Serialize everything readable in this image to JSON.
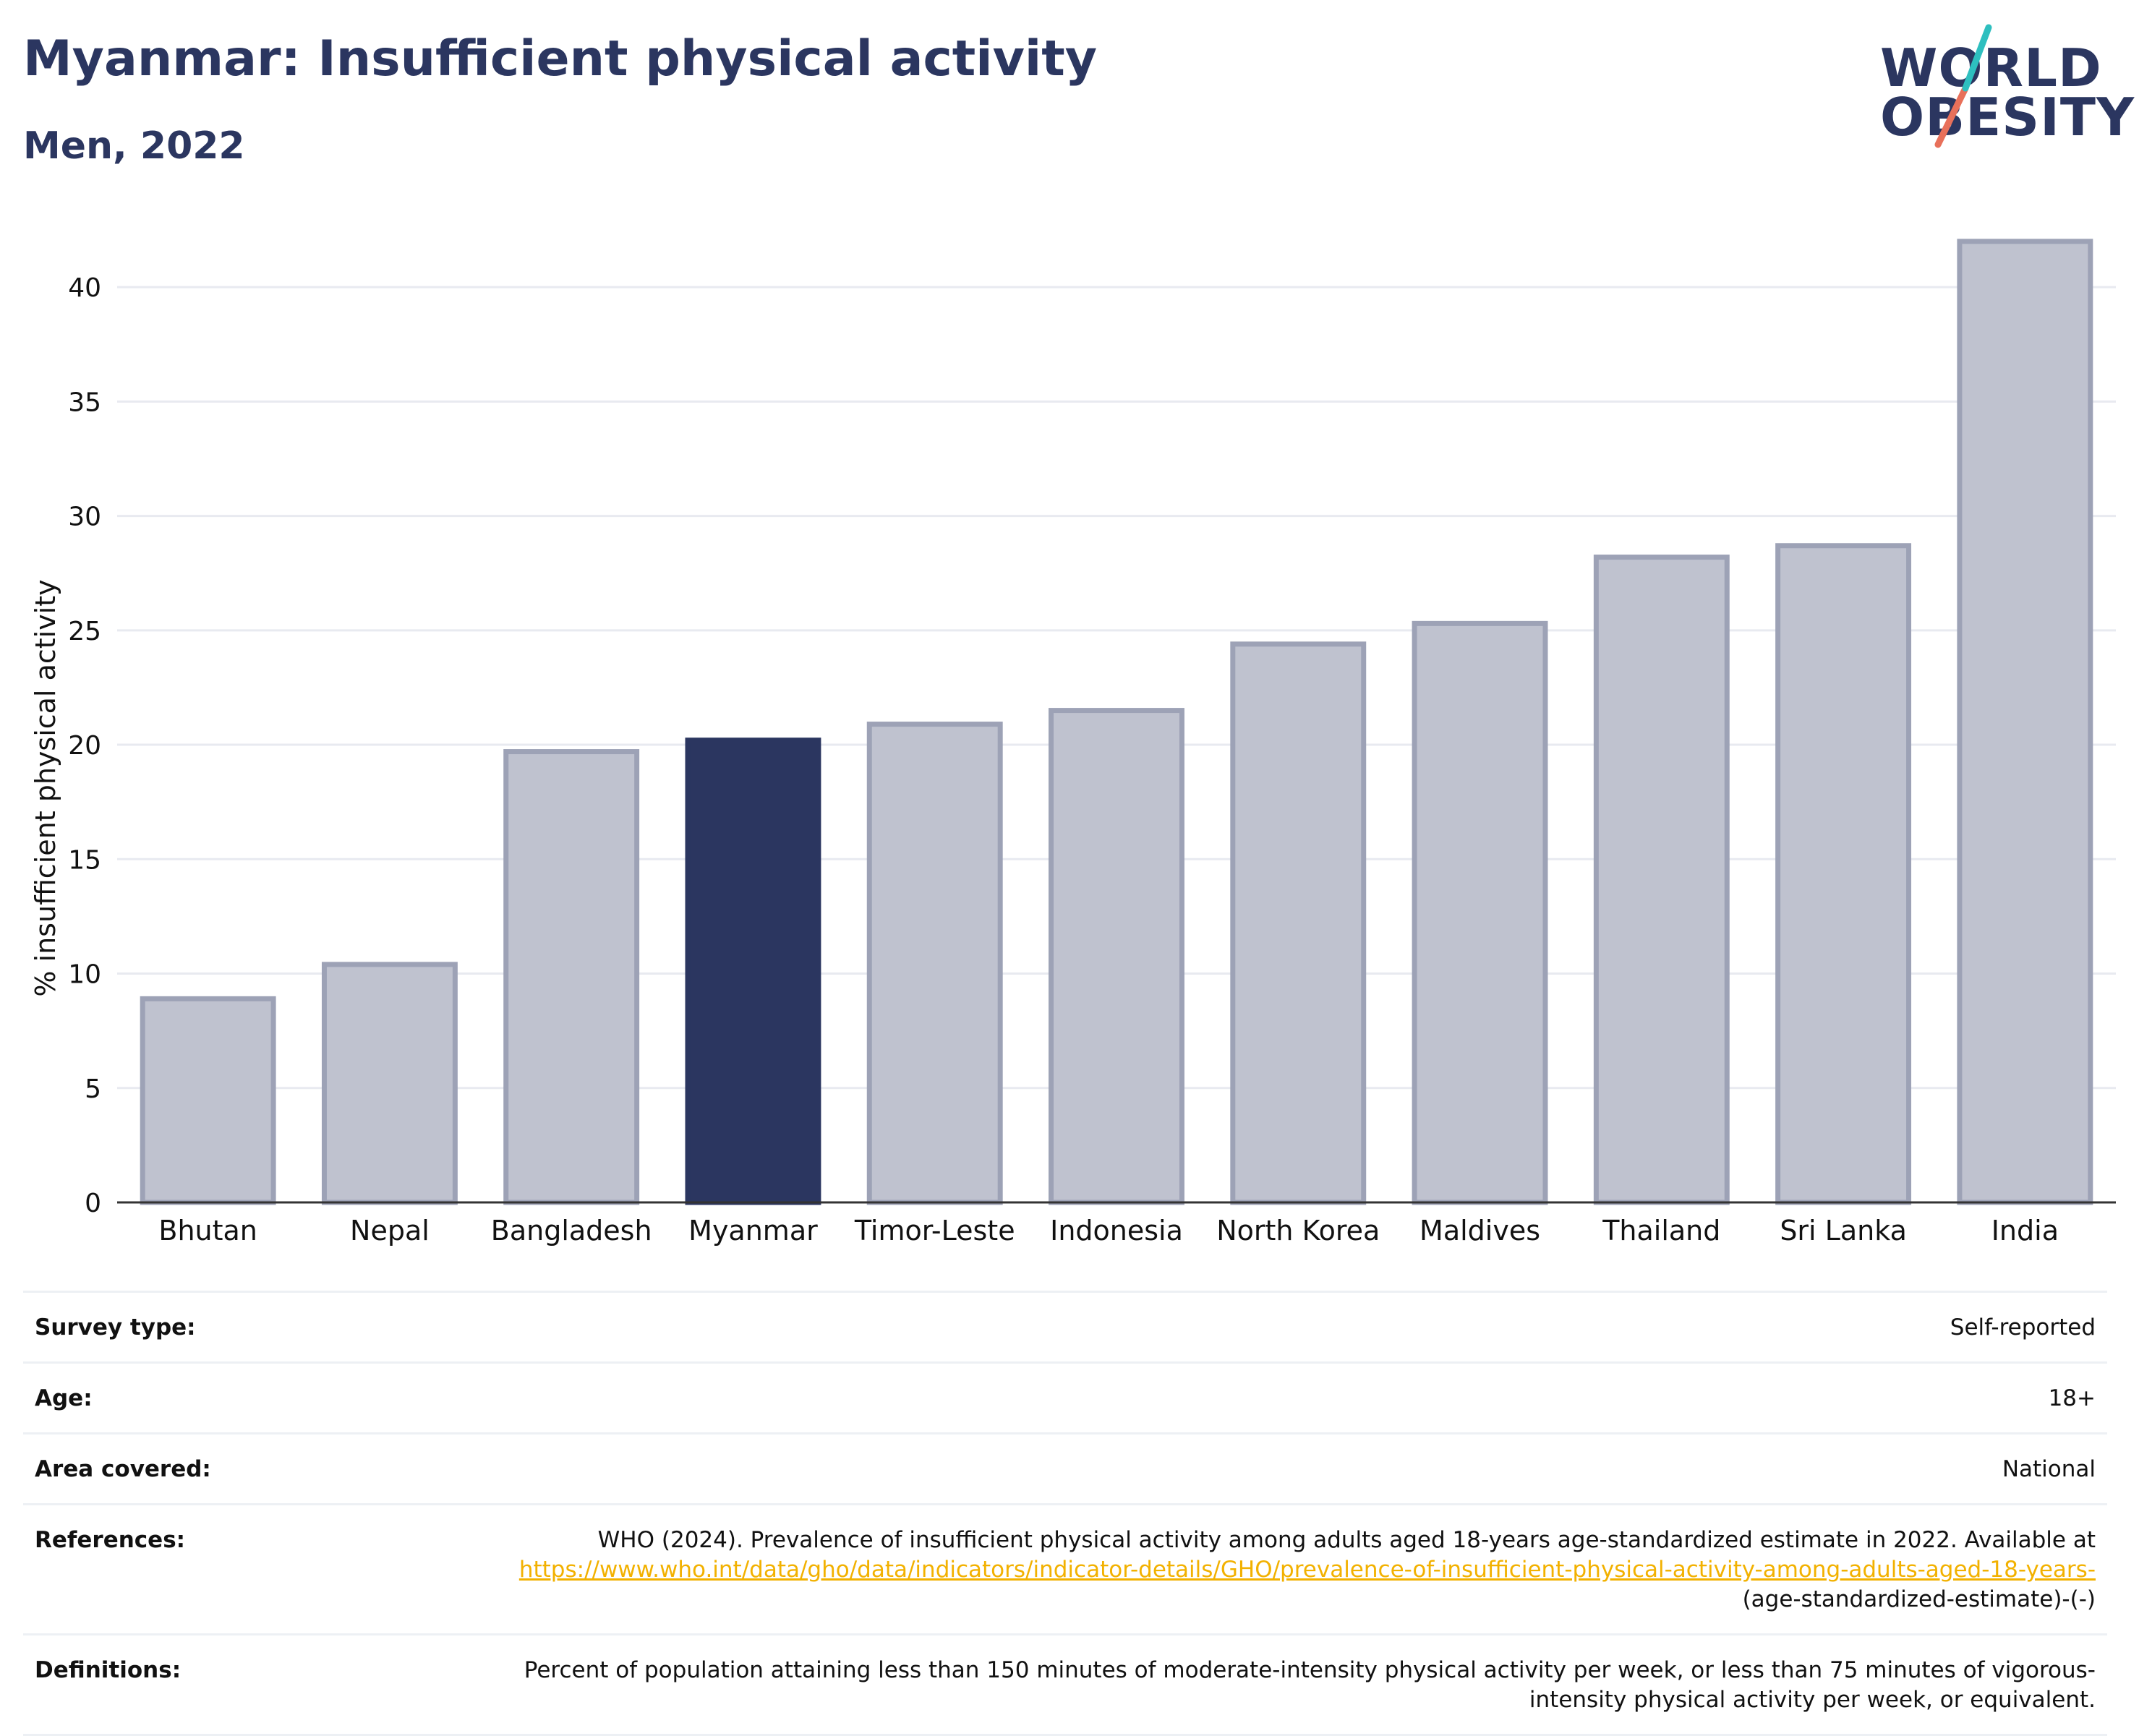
{
  "title": "Myanmar: Insufficient physical activity",
  "subtitle": "Men, 2022",
  "logo": {
    "line1": "WORLD",
    "line2": "OBESITY"
  },
  "colors": {
    "title": "#2b3660",
    "highlight_bar": "#2b3660",
    "other_bar": "#bfc2cf",
    "other_bar_border": "#9da2b6",
    "link": "#f2b100",
    "logo_teal": "#2ebfbf",
    "logo_coral": "#e8705a",
    "gridline": "#e8eaf0"
  },
  "chart_data": {
    "type": "bar",
    "title": "",
    "ylabel": "% insufficient physical activity",
    "xlabel": "",
    "ylim": [
      0,
      42.5
    ],
    "yticks": [
      0,
      5,
      10,
      15,
      20,
      25,
      30,
      35,
      40
    ],
    "grid": true,
    "categories": [
      "Bhutan",
      "Nepal",
      "Bangladesh",
      "Myanmar",
      "Timor-Leste",
      "Indonesia",
      "North Korea",
      "Maldives",
      "Thailand",
      "Sri Lanka",
      "India"
    ],
    "values": [
      8.9,
      10.4,
      19.7,
      20.2,
      20.9,
      21.5,
      24.4,
      25.3,
      28.2,
      28.7,
      42.0
    ],
    "highlight": "Myanmar"
  },
  "details": [
    {
      "label": "Survey type:",
      "value": "Self-reported"
    },
    {
      "label": "Age:",
      "value": "18+"
    },
    {
      "label": "Area covered:",
      "value": "National"
    },
    {
      "label": "References:",
      "value": "WHO (2024). Prevalence of insufficient physical activity among adults aged 18-years age-standardized estimate in 2022. Available at ",
      "link": "https://www.who.int/data/gho/data/indicators/indicator-details/GHO/prevalence-of-insufficient-physical-activity-among-adults-aged-18-years-",
      "suffix": "(age-standardized-estimate)-(-)"
    },
    {
      "label": "Definitions:",
      "value": "Percent of population attaining less than 150 minutes of moderate-intensity physical activity per week, or less than 75 minutes of vigorous-intensity physical activity per week, or equivalent."
    }
  ]
}
